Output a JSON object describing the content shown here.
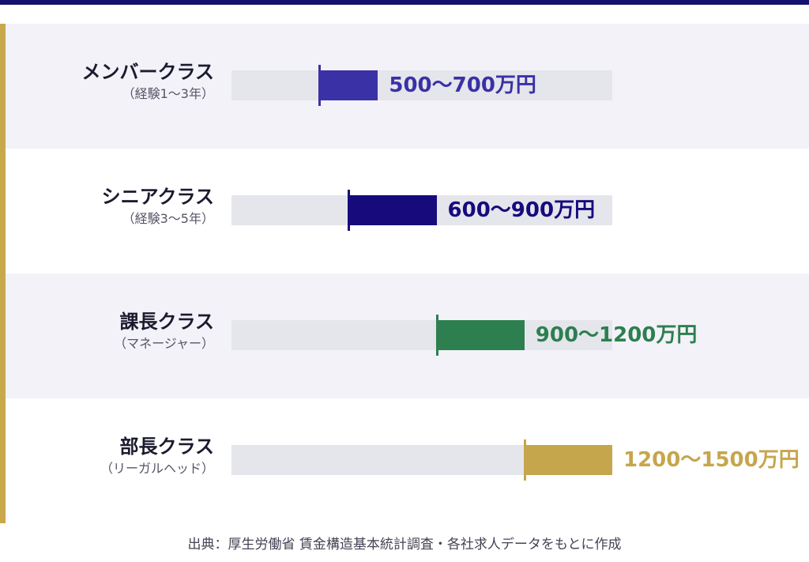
{
  "chart_data": {
    "type": "bar",
    "subtype": "range",
    "unit": "万円",
    "xlim": [
      200,
      1500
    ],
    "categories": [
      {
        "label": "メンバークラス",
        "sublabel": "（経験1〜3年）",
        "min": 500,
        "max": 700,
        "value_text": "500〜700万円",
        "color": "#3a31a6"
      },
      {
        "label": "シニアクラス",
        "sublabel": "（経験3〜5年）",
        "min": 600,
        "max": 900,
        "value_text": "600〜900万円",
        "color": "#170a7d"
      },
      {
        "label": "課長クラス",
        "sublabel": "（マネージャー）",
        "min": 900,
        "max": 1200,
        "value_text": "900〜1200万円",
        "color": "#2d7f4f"
      },
      {
        "label": "部長クラス",
        "sublabel": "（リーガルヘッド）",
        "min": 1200,
        "max": 1500,
        "value_text": "1200〜1500万円",
        "color": "#c6a64c"
      }
    ],
    "grid": false,
    "legend": "none"
  },
  "source_note": "出典：厚生労働省 賃金構造基本統計調査・各社求人データをもとに作成",
  "colors": {
    "header_bar": "#14106e",
    "accent_rule": "#c9a84b",
    "track": "#e5e5ec",
    "row_shade": "#f3f2f8"
  }
}
